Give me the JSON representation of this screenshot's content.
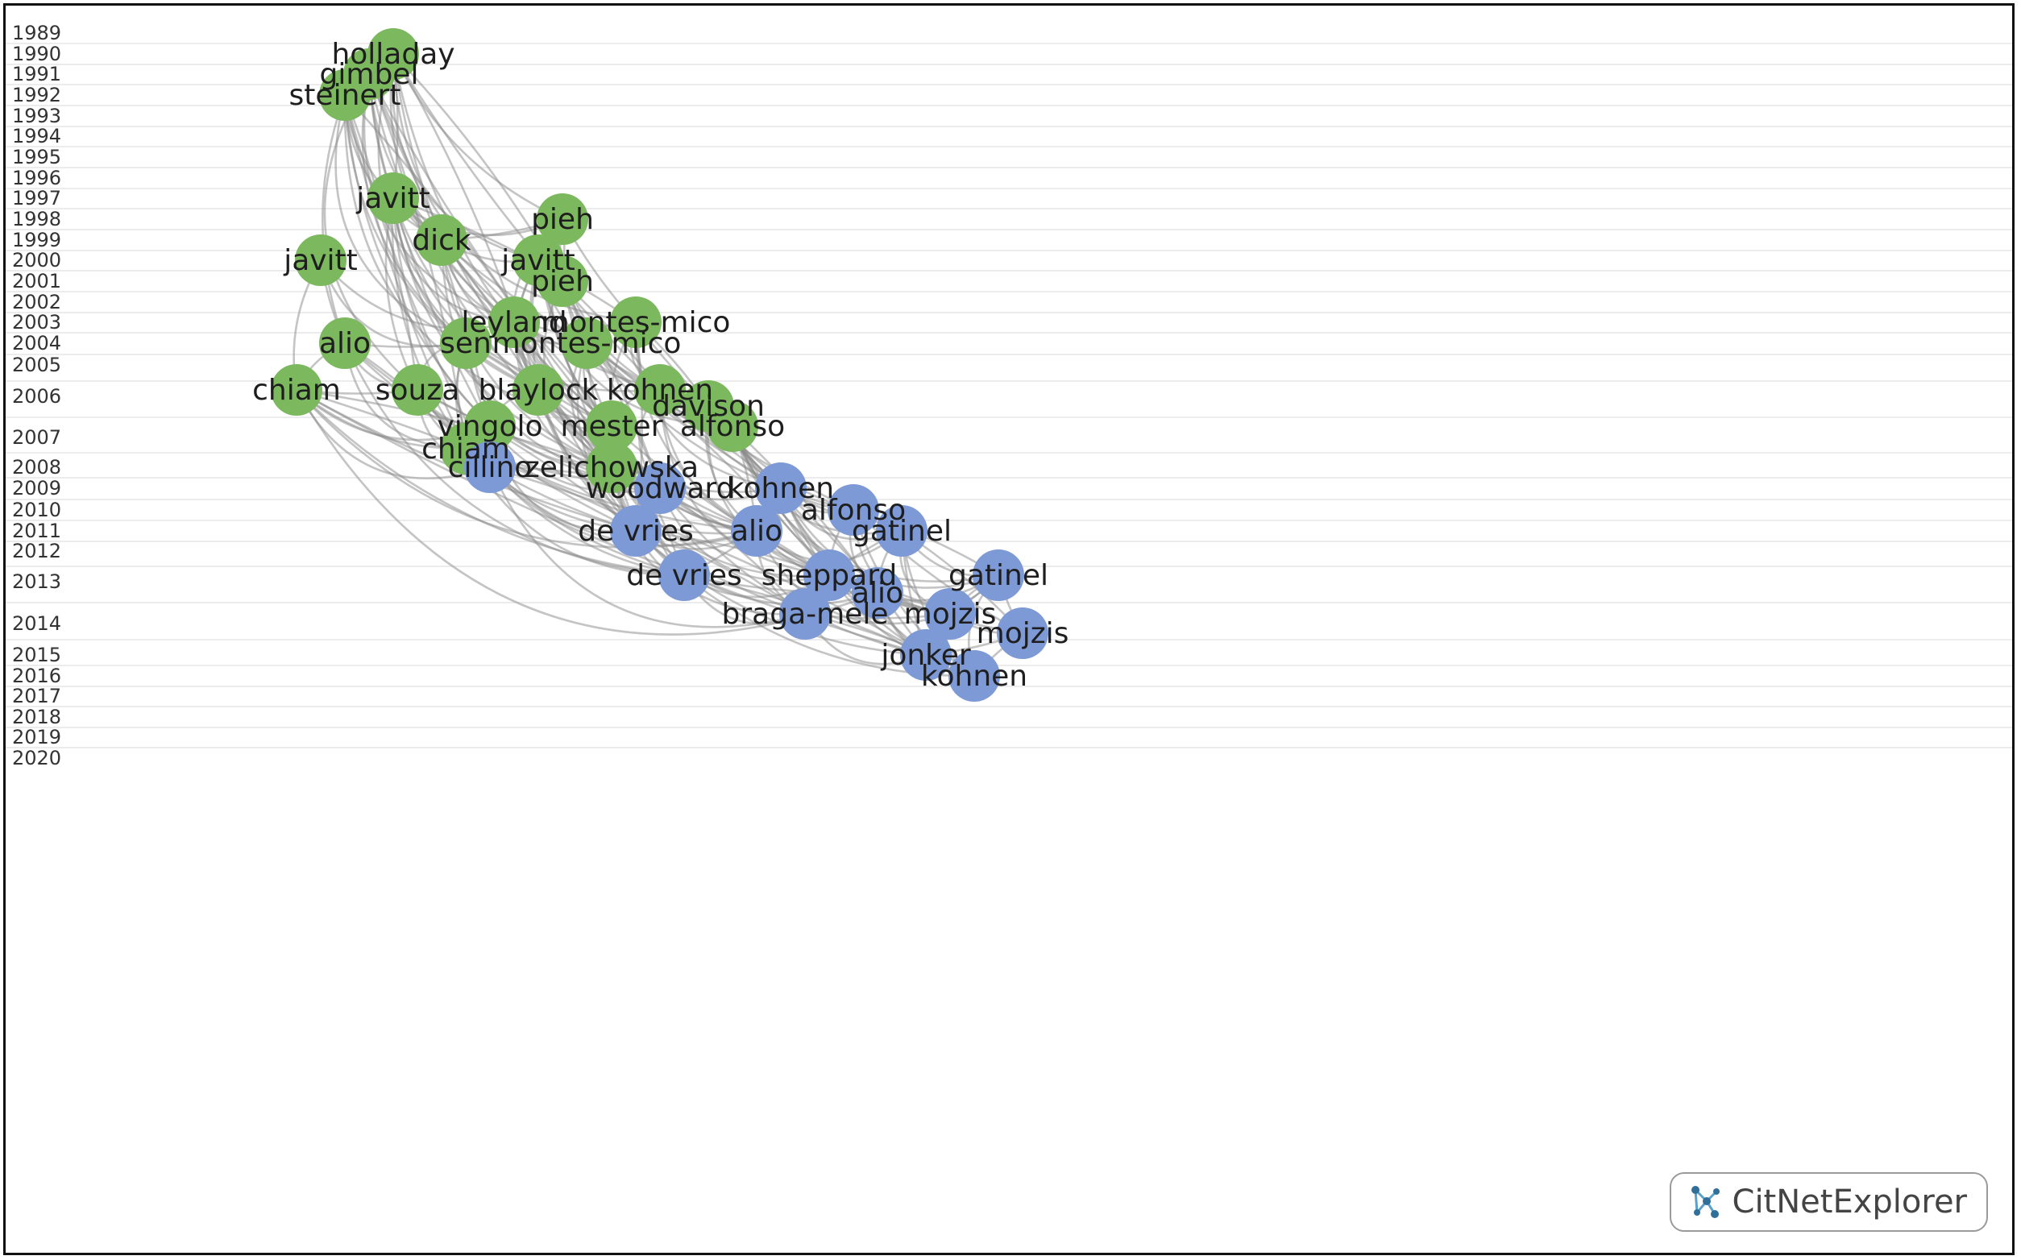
{
  "years": [
    1989,
    1990,
    1991,
    1992,
    1993,
    1994,
    1995,
    1996,
    1997,
    1998,
    1999,
    2000,
    2001,
    2002,
    2003,
    2004,
    2005,
    2006,
    2007,
    2008,
    2009,
    2010,
    2011,
    2012,
    2013,
    2014,
    2015,
    2016,
    2017,
    2018,
    2019,
    2020
  ],
  "colors": {
    "cluster_green": "#7bb85e",
    "cluster_blue": "#7d9ad6",
    "edge": "#8a8a8a"
  },
  "nodes": [
    {
      "id": "holladay-1990",
      "label": "holladay",
      "year": 1990,
      "cluster": "green"
    },
    {
      "id": "gimbel-1991",
      "label": "gimbel",
      "year": 1991,
      "cluster": "green"
    },
    {
      "id": "steinert-1992",
      "label": "steinert",
      "year": 1992,
      "cluster": "green"
    },
    {
      "id": "javitt-1997",
      "label": "javitt",
      "year": 1997,
      "cluster": "green"
    },
    {
      "id": "pieh-1998",
      "label": "pieh",
      "year": 1998,
      "cluster": "green"
    },
    {
      "id": "dick-1999",
      "label": "dick",
      "year": 1999,
      "cluster": "green"
    },
    {
      "id": "javitt-2000a",
      "label": "javitt",
      "year": 2000,
      "cluster": "green"
    },
    {
      "id": "javitt-2000b",
      "label": "javitt",
      "year": 2000,
      "cluster": "green"
    },
    {
      "id": "pieh-2001",
      "label": "pieh",
      "year": 2001,
      "cluster": "green"
    },
    {
      "id": "leyland-2003",
      "label": "leyland",
      "year": 2003,
      "cluster": "green"
    },
    {
      "id": "montes-mico-2003",
      "label": "montes-mico",
      "year": 2003,
      "cluster": "green"
    },
    {
      "id": "alio-2004",
      "label": "alio",
      "year": 2004,
      "cluster": "green"
    },
    {
      "id": "sen-2004",
      "label": "sen",
      "year": 2004,
      "cluster": "green"
    },
    {
      "id": "montes-mico-2004",
      "label": "montes-mico",
      "year": 2004,
      "cluster": "green"
    },
    {
      "id": "chiam-2006",
      "label": "chiam",
      "year": 2006,
      "cluster": "green"
    },
    {
      "id": "souza-2006",
      "label": "souza",
      "year": 2006,
      "cluster": "green"
    },
    {
      "id": "blaylock-2006",
      "label": "blaylock",
      "year": 2006,
      "cluster": "green"
    },
    {
      "id": "kohnen-2006",
      "label": "kohnen",
      "year": 2006,
      "cluster": "green"
    },
    {
      "id": "davison-2006",
      "label": "davison",
      "year": 2006,
      "cluster": "green"
    },
    {
      "id": "vingolo-2007",
      "label": "vingolo",
      "year": 2007,
      "cluster": "green"
    },
    {
      "id": "mester-2007",
      "label": "mester",
      "year": 2007,
      "cluster": "green"
    },
    {
      "id": "alfonso-2007",
      "label": "alfonso",
      "year": 2007,
      "cluster": "green"
    },
    {
      "id": "chiam-2007",
      "label": "chiam",
      "year": 2007,
      "cluster": "green"
    },
    {
      "id": "zelichowska-2008",
      "label": "zelichowska",
      "year": 2008,
      "cluster": "green"
    },
    {
      "id": "cillino-2008",
      "label": "cillino",
      "year": 2008,
      "cluster": "blue"
    },
    {
      "id": "woodward-2009",
      "label": "woodward",
      "year": 2009,
      "cluster": "blue"
    },
    {
      "id": "kohnen-2009",
      "label": "kohnen",
      "year": 2009,
      "cluster": "blue"
    },
    {
      "id": "alfonso-2010",
      "label": "alfonso",
      "year": 2010,
      "cluster": "blue"
    },
    {
      "id": "de-vries-2011",
      "label": "de vries",
      "year": 2011,
      "cluster": "blue"
    },
    {
      "id": "alio-2011",
      "label": "alio",
      "year": 2011,
      "cluster": "blue"
    },
    {
      "id": "gatinel-2011",
      "label": "gatinel",
      "year": 2011,
      "cluster": "blue"
    },
    {
      "id": "de-vries-2013",
      "label": "de vries",
      "year": 2013,
      "cluster": "blue"
    },
    {
      "id": "sheppard-2013",
      "label": "sheppard",
      "year": 2013,
      "cluster": "blue"
    },
    {
      "id": "gatinel-2013",
      "label": "gatinel",
      "year": 2013,
      "cluster": "blue"
    },
    {
      "id": "alio-2013",
      "label": "alio",
      "year": 2013,
      "cluster": "blue"
    },
    {
      "id": "braga-mele-2014",
      "label": "braga-mele",
      "year": 2014,
      "cluster": "blue"
    },
    {
      "id": "mojzis-2014a",
      "label": "mojzis",
      "year": 2014,
      "cluster": "blue"
    },
    {
      "id": "mojzis-2014b",
      "label": "mojzis",
      "year": 2014,
      "cluster": "blue"
    },
    {
      "id": "jonker-2015",
      "label": "jonker",
      "year": 2015,
      "cluster": "blue"
    },
    {
      "id": "kohnen-2016",
      "label": "kohnen",
      "year": 2016,
      "cluster": "blue"
    }
  ],
  "edges": [
    [
      "holladay-1990",
      "javitt-1997"
    ],
    [
      "holladay-1990",
      "dick-1999"
    ],
    [
      "holladay-1990",
      "pieh-1998"
    ],
    [
      "holladay-1990",
      "leyland-2003"
    ],
    [
      "holladay-1990",
      "montes-mico-2003"
    ],
    [
      "holladay-1990",
      "blaylock-2006"
    ],
    [
      "holladay-1990",
      "kohnen-2006"
    ],
    [
      "holladay-1990",
      "mester-2007"
    ],
    [
      "holladay-1990",
      "sen-2004"
    ],
    [
      "holladay-1990",
      "javitt-2000b"
    ],
    [
      "holladay-1990",
      "pieh-2001"
    ],
    [
      "gimbel-1991",
      "javitt-1997"
    ],
    [
      "gimbel-1991",
      "dick-1999"
    ],
    [
      "gimbel-1991",
      "sen-2004"
    ],
    [
      "gimbel-1991",
      "souza-2006"
    ],
    [
      "gimbel-1991",
      "vingolo-2007"
    ],
    [
      "gimbel-1991",
      "blaylock-2006"
    ],
    [
      "gimbel-1991",
      "zelichowska-2008"
    ],
    [
      "gimbel-1991",
      "mester-2007"
    ],
    [
      "gimbel-1991",
      "leyland-2003"
    ],
    [
      "gimbel-1991",
      "chiam-2007"
    ],
    [
      "gimbel-1991",
      "woodward-2009"
    ],
    [
      "steinert-1992",
      "javitt-1997"
    ],
    [
      "steinert-1992",
      "dick-1999"
    ],
    [
      "steinert-1992",
      "sen-2004"
    ],
    [
      "steinert-1992",
      "souza-2006"
    ],
    [
      "steinert-1992",
      "chiam-2007"
    ],
    [
      "steinert-1992",
      "vingolo-2007"
    ],
    [
      "steinert-1992",
      "blaylock-2006"
    ],
    [
      "steinert-1992",
      "mester-2007"
    ],
    [
      "steinert-1992",
      "zelichowska-2008"
    ],
    [
      "steinert-1992",
      "cillino-2008"
    ],
    [
      "steinert-1992",
      "alio-2004"
    ],
    [
      "javitt-1997",
      "pieh-1998"
    ],
    [
      "javitt-1997",
      "leyland-2003"
    ],
    [
      "javitt-1997",
      "montes-mico-2003"
    ],
    [
      "javitt-1997",
      "montes-mico-2004"
    ],
    [
      "javitt-1997",
      "souza-2006"
    ],
    [
      "javitt-1997",
      "blaylock-2006"
    ],
    [
      "javitt-1997",
      "kohnen-2006"
    ],
    [
      "javitt-1997",
      "mester-2007"
    ],
    [
      "javitt-1997",
      "vingolo-2007"
    ],
    [
      "javitt-1997",
      "chiam-2007"
    ],
    [
      "javitt-1997",
      "zelichowska-2008"
    ],
    [
      "javitt-1997",
      "woodward-2009"
    ],
    [
      "javitt-1997",
      "de-vries-2011"
    ],
    [
      "dick-1999",
      "pieh-1998"
    ],
    [
      "dick-1999",
      "javitt-2000b"
    ],
    [
      "dick-1999",
      "leyland-2003"
    ],
    [
      "dick-1999",
      "montes-mico-2004"
    ],
    [
      "dick-1999",
      "blaylock-2006"
    ],
    [
      "dick-1999",
      "mester-2007"
    ],
    [
      "dick-1999",
      "kohnen-2006"
    ],
    [
      "dick-1999",
      "zelichowska-2008"
    ],
    [
      "dick-1999",
      "woodward-2009"
    ],
    [
      "pieh-1998",
      "pieh-2001"
    ],
    [
      "pieh-1998",
      "montes-mico-2003"
    ],
    [
      "pieh-1998",
      "montes-mico-2004"
    ],
    [
      "pieh-1998",
      "mester-2007"
    ],
    [
      "pieh-1998",
      "blaylock-2006"
    ],
    [
      "javitt-2000b",
      "pieh-2001"
    ],
    [
      "javitt-2000b",
      "leyland-2003"
    ],
    [
      "javitt-2000b",
      "montes-mico-2004"
    ],
    [
      "javitt-2000b",
      "blaylock-2006"
    ],
    [
      "javitt-2000b",
      "mester-2007"
    ],
    [
      "javitt-2000b",
      "kohnen-2006"
    ],
    [
      "javitt-2000b",
      "zelichowska-2008"
    ],
    [
      "javitt-2000b",
      "woodward-2009"
    ],
    [
      "javitt-2000b",
      "de-vries-2011"
    ],
    [
      "javitt-2000b",
      "alfonso-2007"
    ],
    [
      "pieh-2001",
      "montes-mico-2004"
    ],
    [
      "pieh-2001",
      "mester-2007"
    ],
    [
      "pieh-2001",
      "kohnen-2006"
    ],
    [
      "pieh-2001",
      "davison-2006"
    ],
    [
      "pieh-2001",
      "zelichowska-2008"
    ],
    [
      "pieh-2001",
      "woodward-2009"
    ],
    [
      "javitt-2000a",
      "alio-2004"
    ],
    [
      "javitt-2000a",
      "chiam-2006"
    ],
    [
      "javitt-2000a",
      "leyland-2003"
    ],
    [
      "javitt-2000a",
      "sen-2004"
    ],
    [
      "leyland-2003",
      "montes-mico-2004"
    ],
    [
      "leyland-2003",
      "blaylock-2006"
    ],
    [
      "leyland-2003",
      "mester-2007"
    ],
    [
      "leyland-2003",
      "zelichowska-2008"
    ],
    [
      "leyland-2003",
      "woodward-2009"
    ],
    [
      "leyland-2003",
      "kohnen-2009"
    ],
    [
      "leyland-2003",
      "de-vries-2011"
    ],
    [
      "leyland-2003",
      "alio-2011"
    ],
    [
      "montes-mico-2003",
      "montes-mico-2004"
    ],
    [
      "montes-mico-2003",
      "kohnen-2006"
    ],
    [
      "montes-mico-2003",
      "davison-2006"
    ],
    [
      "montes-mico-2003",
      "alfonso-2007"
    ],
    [
      "montes-mico-2003",
      "mester-2007"
    ],
    [
      "montes-mico-2003",
      "alio-2011"
    ],
    [
      "montes-mico-2003",
      "kohnen-2009"
    ],
    [
      "montes-mico-2003",
      "de-vries-2011"
    ],
    [
      "montes-mico-2004",
      "kohnen-2006"
    ],
    [
      "montes-mico-2004",
      "alfonso-2007"
    ],
    [
      "montes-mico-2004",
      "mester-2007"
    ],
    [
      "montes-mico-2004",
      "zelichowska-2008"
    ],
    [
      "montes-mico-2004",
      "woodward-2009"
    ],
    [
      "montes-mico-2004",
      "kohnen-2009"
    ],
    [
      "montes-mico-2004",
      "alfonso-2010"
    ],
    [
      "montes-mico-2004",
      "de-vries-2011"
    ],
    [
      "montes-mico-2004",
      "alio-2011"
    ],
    [
      "montes-mico-2004",
      "sheppard-2013"
    ],
    [
      "alio-2004",
      "sen-2004"
    ],
    [
      "alio-2004",
      "chiam-2006"
    ],
    [
      "alio-2004",
      "souza-2006"
    ],
    [
      "alio-2004",
      "chiam-2007"
    ],
    [
      "alio-2004",
      "cillino-2008"
    ],
    [
      "alio-2004",
      "de-vries-2011"
    ],
    [
      "alio-2004",
      "alio-2011"
    ],
    [
      "alio-2004",
      "de-vries-2013"
    ],
    [
      "sen-2004",
      "souza-2006"
    ],
    [
      "sen-2004",
      "blaylock-2006"
    ],
    [
      "sen-2004",
      "vingolo-2007"
    ],
    [
      "sen-2004",
      "chiam-2007"
    ],
    [
      "sen-2004",
      "cillino-2008"
    ],
    [
      "sen-2004",
      "zelichowska-2008"
    ],
    [
      "sen-2004",
      "woodward-2009"
    ],
    [
      "chiam-2006",
      "souza-2006"
    ],
    [
      "chiam-2006",
      "chiam-2007"
    ],
    [
      "chiam-2006",
      "vingolo-2007"
    ],
    [
      "chiam-2006",
      "cillino-2008"
    ],
    [
      "chiam-2006",
      "woodward-2009"
    ],
    [
      "chiam-2006",
      "de-vries-2011"
    ],
    [
      "chiam-2006",
      "de-vries-2013"
    ],
    [
      "chiam-2006",
      "alio-2011"
    ],
    [
      "chiam-2006",
      "alio-2013"
    ],
    [
      "chiam-2006",
      "braga-mele-2014"
    ],
    [
      "chiam-2006",
      "jonker-2015"
    ],
    [
      "souza-2006",
      "chiam-2007"
    ],
    [
      "souza-2006",
      "vingolo-2007"
    ],
    [
      "souza-2006",
      "cillino-2008"
    ],
    [
      "souza-2006",
      "de-vries-2011"
    ],
    [
      "souza-2006",
      "woodward-2009"
    ],
    [
      "souza-2006",
      "de-vries-2013"
    ],
    [
      "blaylock-2006",
      "vingolo-2007"
    ],
    [
      "blaylock-2006",
      "mester-2007"
    ],
    [
      "blaylock-2006",
      "zelichowska-2008"
    ],
    [
      "blaylock-2006",
      "woodward-2009"
    ],
    [
      "blaylock-2006",
      "de-vries-2011"
    ],
    [
      "blaylock-2006",
      "kohnen-2009"
    ],
    [
      "blaylock-2006",
      "alio-2011"
    ],
    [
      "blaylock-2006",
      "de-vries-2013"
    ],
    [
      "kohnen-2006",
      "davison-2006"
    ],
    [
      "kohnen-2006",
      "alfonso-2007"
    ],
    [
      "kohnen-2006",
      "mester-2007"
    ],
    [
      "kohnen-2006",
      "woodward-2009"
    ],
    [
      "kohnen-2006",
      "kohnen-2009"
    ],
    [
      "kohnen-2006",
      "alfonso-2010"
    ],
    [
      "kohnen-2006",
      "gatinel-2011"
    ],
    [
      "kohnen-2006",
      "alio-2011"
    ],
    [
      "kohnen-2006",
      "sheppard-2013"
    ],
    [
      "davison-2006",
      "alfonso-2007"
    ],
    [
      "davison-2006",
      "kohnen-2009"
    ],
    [
      "davison-2006",
      "alfonso-2010"
    ],
    [
      "davison-2006",
      "alio-2011"
    ],
    [
      "davison-2006",
      "sheppard-2013"
    ],
    [
      "davison-2006",
      "alio-2013"
    ],
    [
      "vingolo-2007",
      "chiam-2007"
    ],
    [
      "vingolo-2007",
      "cillino-2008"
    ],
    [
      "vingolo-2007",
      "woodward-2009"
    ],
    [
      "vingolo-2007",
      "de-vries-2011"
    ],
    [
      "mester-2007",
      "zelichowska-2008"
    ],
    [
      "mester-2007",
      "woodward-2009"
    ],
    [
      "mester-2007",
      "de-vries-2011"
    ],
    [
      "mester-2007",
      "alio-2011"
    ],
    [
      "mester-2007",
      "kohnen-2009"
    ],
    [
      "mester-2007",
      "de-vries-2013"
    ],
    [
      "mester-2007",
      "sheppard-2013"
    ],
    [
      "alfonso-2007",
      "kohnen-2009"
    ],
    [
      "alfonso-2007",
      "alfonso-2010"
    ],
    [
      "alfonso-2007",
      "gatinel-2011"
    ],
    [
      "alfonso-2007",
      "alio-2011"
    ],
    [
      "alfonso-2007",
      "sheppard-2013"
    ],
    [
      "alfonso-2007",
      "alio-2013"
    ],
    [
      "alfonso-2007",
      "mojzis-2014a"
    ],
    [
      "alfonso-2007",
      "gatinel-2013"
    ],
    [
      "chiam-2007",
      "cillino-2008"
    ],
    [
      "chiam-2007",
      "woodward-2009"
    ],
    [
      "chiam-2007",
      "de-vries-2011"
    ],
    [
      "chiam-2007",
      "de-vries-2013"
    ],
    [
      "zelichowska-2008",
      "woodward-2009"
    ],
    [
      "zelichowska-2008",
      "de-vries-2011"
    ],
    [
      "zelichowska-2008",
      "alio-2011"
    ],
    [
      "zelichowska-2008",
      "de-vries-2013"
    ],
    [
      "zelichowska-2008",
      "sheppard-2013"
    ],
    [
      "zelichowska-2008",
      "braga-mele-2014"
    ],
    [
      "cillino-2008",
      "woodward-2009"
    ],
    [
      "cillino-2008",
      "de-vries-2011"
    ],
    [
      "cillino-2008",
      "de-vries-2013"
    ],
    [
      "cillino-2008",
      "alio-2011"
    ],
    [
      "cillino-2008",
      "braga-mele-2014"
    ],
    [
      "cillino-2008",
      "jonker-2015"
    ],
    [
      "woodward-2009",
      "de-vries-2011"
    ],
    [
      "woodward-2009",
      "alio-2011"
    ],
    [
      "woodward-2009",
      "de-vries-2013"
    ],
    [
      "woodward-2009",
      "sheppard-2013"
    ],
    [
      "woodward-2009",
      "braga-mele-2014"
    ],
    [
      "woodward-2009",
      "alio-2013"
    ],
    [
      "woodward-2009",
      "jonker-2015"
    ],
    [
      "kohnen-2009",
      "alfonso-2010"
    ],
    [
      "kohnen-2009",
      "gatinel-2011"
    ],
    [
      "kohnen-2009",
      "alio-2011"
    ],
    [
      "kohnen-2009",
      "sheppard-2013"
    ],
    [
      "kohnen-2009",
      "alio-2013"
    ],
    [
      "kohnen-2009",
      "mojzis-2014a"
    ],
    [
      "kohnen-2009",
      "gatinel-2013"
    ],
    [
      "kohnen-2009",
      "jonker-2015"
    ],
    [
      "alfonso-2010",
      "gatinel-2011"
    ],
    [
      "alfonso-2010",
      "sheppard-2013"
    ],
    [
      "alfonso-2010",
      "alio-2013"
    ],
    [
      "alfonso-2010",
      "mojzis-2014a"
    ],
    [
      "alfonso-2010",
      "gatinel-2013"
    ],
    [
      "alfonso-2010",
      "mojzis-2014b"
    ],
    [
      "alfonso-2010",
      "kohnen-2016"
    ],
    [
      "de-vries-2011",
      "alio-2011"
    ],
    [
      "de-vries-2011",
      "de-vries-2013"
    ],
    [
      "de-vries-2011",
      "sheppard-2013"
    ],
    [
      "de-vries-2011",
      "braga-mele-2014"
    ],
    [
      "de-vries-2011",
      "jonker-2015"
    ],
    [
      "de-vries-2011",
      "alio-2013"
    ],
    [
      "alio-2011",
      "gatinel-2011"
    ],
    [
      "alio-2011",
      "de-vries-2013"
    ],
    [
      "alio-2011",
      "sheppard-2013"
    ],
    [
      "alio-2011",
      "alio-2013"
    ],
    [
      "alio-2011",
      "braga-mele-2014"
    ],
    [
      "alio-2011",
      "mojzis-2014a"
    ],
    [
      "alio-2011",
      "jonker-2015"
    ],
    [
      "gatinel-2011",
      "sheppard-2013"
    ],
    [
      "gatinel-2011",
      "alio-2013"
    ],
    [
      "gatinel-2011",
      "gatinel-2013"
    ],
    [
      "gatinel-2011",
      "mojzis-2014a"
    ],
    [
      "gatinel-2011",
      "mojzis-2014b"
    ],
    [
      "gatinel-2011",
      "jonker-2015"
    ],
    [
      "gatinel-2011",
      "kohnen-2016"
    ],
    [
      "de-vries-2013",
      "sheppard-2013"
    ],
    [
      "de-vries-2013",
      "braga-mele-2014"
    ],
    [
      "de-vries-2013",
      "jonker-2015"
    ],
    [
      "de-vries-2013",
      "alio-2013"
    ],
    [
      "de-vries-2013",
      "kohnen-2016"
    ],
    [
      "sheppard-2013",
      "alio-2013"
    ],
    [
      "sheppard-2013",
      "braga-mele-2014"
    ],
    [
      "sheppard-2013",
      "mojzis-2014a"
    ],
    [
      "sheppard-2013",
      "jonker-2015"
    ],
    [
      "sheppard-2013",
      "kohnen-2016"
    ],
    [
      "sheppard-2013",
      "gatinel-2013"
    ],
    [
      "alio-2013",
      "braga-mele-2014"
    ],
    [
      "alio-2013",
      "mojzis-2014a"
    ],
    [
      "alio-2013",
      "mojzis-2014b"
    ],
    [
      "alio-2013",
      "jonker-2015"
    ],
    [
      "alio-2013",
      "kohnen-2016"
    ],
    [
      "alio-2013",
      "gatinel-2013"
    ],
    [
      "gatinel-2013",
      "mojzis-2014a"
    ],
    [
      "gatinel-2013",
      "mojzis-2014b"
    ],
    [
      "gatinel-2013",
      "jonker-2015"
    ],
    [
      "gatinel-2013",
      "kohnen-2016"
    ],
    [
      "braga-mele-2014",
      "jonker-2015"
    ],
    [
      "braga-mele-2014",
      "kohnen-2016"
    ],
    [
      "braga-mele-2014",
      "mojzis-2014a"
    ],
    [
      "mojzis-2014a",
      "mojzis-2014b"
    ],
    [
      "mojzis-2014a",
      "jonker-2015"
    ],
    [
      "mojzis-2014a",
      "kohnen-2016"
    ],
    [
      "mojzis-2014b",
      "jonker-2015"
    ],
    [
      "mojzis-2014b",
      "kohnen-2016"
    ],
    [
      "jonker-2015",
      "kohnen-2016"
    ]
  ],
  "logo": {
    "text": "CitNetExplorer",
    "icon": "citnet-logo-icon"
  }
}
